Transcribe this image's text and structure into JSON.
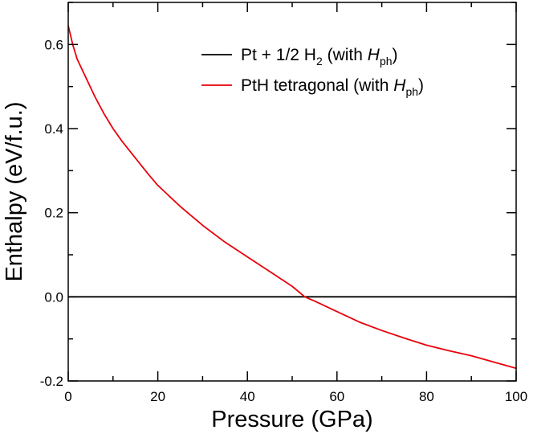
{
  "chart_data": {
    "type": "line",
    "title": "",
    "xlabel": "Pressure (GPa)",
    "ylabel": "Enthalpy (eV/f.u.)",
    "xlim": [
      0,
      100
    ],
    "ylim": [
      -0.2,
      0.7
    ],
    "x_ticks": [
      0,
      20,
      40,
      60,
      80,
      100
    ],
    "x_tick_labels": [
      "0",
      "20",
      "40",
      "60",
      "80",
      "100"
    ],
    "y_ticks": [
      -0.2,
      0.0,
      0.2,
      0.4,
      0.6
    ],
    "y_tick_labels": [
      "-0.2",
      "0.0",
      "0.2",
      "0.4",
      "0.6"
    ],
    "grid": false,
    "legend_position": "top-right",
    "series": [
      {
        "name": "Pt + 1/2 H2 (with Hph)",
        "legend": {
          "main": "Pt + 1/2 H",
          "sub1": "2",
          "mid": " (with ",
          "italic": "H",
          "sub2": "ph",
          "end": ")"
        },
        "color": "#000000",
        "x": [
          0,
          100
        ],
        "y": [
          0.0,
          0.0
        ]
      },
      {
        "name": "PtH tetragonal (with Hph)",
        "legend": {
          "main": "PtH tetragonal (with ",
          "italic": "H",
          "sub2": "ph",
          "end": ")"
        },
        "color": "#e8000b",
        "x": [
          0,
          1,
          2,
          4,
          6,
          8,
          10,
          12,
          15,
          18,
          20,
          25,
          30,
          35,
          40,
          45,
          50,
          52.8,
          55,
          60,
          65,
          70,
          75,
          80,
          85,
          90,
          95,
          100
        ],
        "y": [
          0.645,
          0.6,
          0.565,
          0.52,
          0.475,
          0.435,
          0.4,
          0.37,
          0.33,
          0.29,
          0.265,
          0.215,
          0.17,
          0.13,
          0.095,
          0.06,
          0.025,
          0.0,
          -0.01,
          -0.035,
          -0.06,
          -0.08,
          -0.098,
          -0.115,
          -0.128,
          -0.14,
          -0.155,
          -0.17
        ]
      }
    ]
  }
}
